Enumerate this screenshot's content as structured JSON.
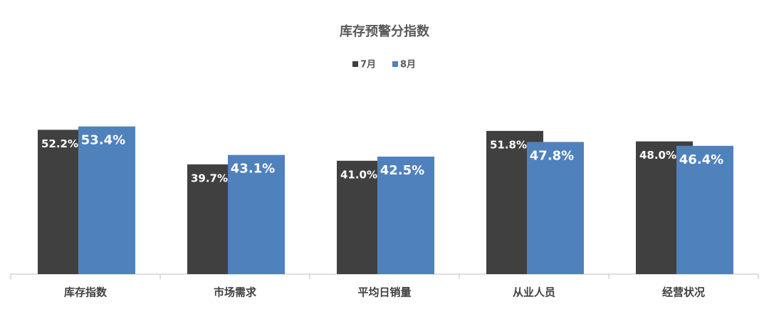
{
  "chart_data": {
    "type": "bar",
    "title": "库存预警分指数",
    "categories": [
      "库存指数",
      "市场需求",
      "平均日销量",
      "从业人员",
      "经营状况"
    ],
    "series": [
      {
        "name": "7月",
        "color": "#404040",
        "values": [
          52.2,
          39.7,
          41.0,
          51.8,
          48.0
        ],
        "value_labels": [
          "52.2%",
          "39.7%",
          "41.0%",
          "51.8%",
          "48.0%"
        ]
      },
      {
        "name": "8月",
        "color": "#4f81bd",
        "values": [
          53.4,
          43.1,
          42.5,
          47.8,
          46.4
        ],
        "value_labels": [
          "53.4%",
          "43.1%",
          "42.5%",
          "47.8%",
          "46.4%"
        ]
      }
    ],
    "ylim": [
      0,
      60
    ],
    "grid": false,
    "legend": "top"
  }
}
